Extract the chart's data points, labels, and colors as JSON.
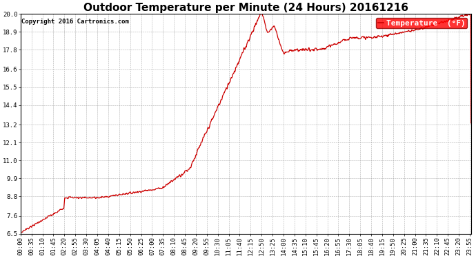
{
  "title": "Outdoor Temperature per Minute (24 Hours) 20161216",
  "copyright": "Copyright 2016 Cartronics.com",
  "legend_label": "Temperature  (°F)",
  "line_color": "#cc0000",
  "bg_color": "#ffffff",
  "grid_color": "#999999",
  "ylabel_values": [
    6.5,
    7.6,
    8.8,
    9.9,
    11.0,
    12.1,
    13.2,
    14.4,
    15.5,
    16.6,
    17.8,
    18.9,
    20.0
  ],
  "ylim": [
    6.5,
    20.0
  ],
  "xlim_minutes": [
    0,
    1439
  ],
  "x_tick_interval_minutes": 35,
  "title_fontsize": 11,
  "tick_fontsize": 6.5,
  "copyright_fontsize": 6.5,
  "legend_fontsize": 8,
  "line_width": 0.9
}
